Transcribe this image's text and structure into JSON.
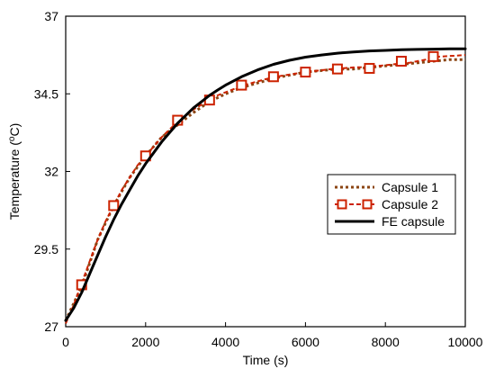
{
  "chart_data": {
    "type": "line",
    "title": "",
    "xlabel": "Time (s)",
    "ylabel_main": "Temperature (",
    "ylabel_sup": "o",
    "ylabel_tail": "C)",
    "xlim": [
      0,
      10000
    ],
    "ylim": [
      27,
      37
    ],
    "x_ticks": [
      0,
      2000,
      4000,
      6000,
      8000,
      10000
    ],
    "x_tick_labels": [
      "0",
      "2000",
      "4000",
      "6000",
      "8000",
      "10000"
    ],
    "y_ticks": [
      27,
      29.5,
      32,
      34.5,
      37
    ],
    "y_tick_labels": [
      "27",
      "29.5",
      "32",
      "34.5",
      "37"
    ],
    "grid": false,
    "legend_position": "right",
    "series": [
      {
        "name": "Capsule 1",
        "style": "dotted",
        "color": "#8B4513",
        "x": [
          0,
          400,
          800,
          1200,
          1600,
          2000,
          2400,
          2800,
          3200,
          3600,
          4000,
          4400,
          4800,
          5200,
          5600,
          6000,
          6400,
          6800,
          7200,
          7600,
          8000,
          8400,
          8800,
          9200,
          9600,
          10000
        ],
        "y": [
          27.2,
          28.3,
          29.8,
          30.9,
          31.8,
          32.5,
          33.1,
          33.5,
          33.9,
          34.25,
          34.5,
          34.7,
          34.85,
          35.0,
          35.1,
          35.2,
          35.25,
          35.3,
          35.3,
          35.35,
          35.4,
          35.45,
          35.5,
          35.55,
          35.6,
          35.6
        ]
      },
      {
        "name": "Capsule 2",
        "style": "dashed-square",
        "color": "#CC2200",
        "x": [
          0,
          200,
          400,
          600,
          800,
          1000,
          1200,
          1400,
          1600,
          1800,
          2000,
          2200,
          2400,
          2600,
          2800,
          3000,
          3200,
          3400,
          3600,
          3800,
          4000,
          4200,
          4400,
          4600,
          4800,
          5000,
          5200,
          5400,
          5600,
          5800,
          6000,
          6200,
          6400,
          6600,
          6800,
          7000,
          7200,
          7400,
          7600,
          7800,
          8000,
          8200,
          8400,
          8600,
          8800,
          9000,
          9200,
          9400,
          9600,
          9800,
          10000
        ],
        "y": [
          27.1,
          27.7,
          28.4,
          29.1,
          29.8,
          30.4,
          30.9,
          31.4,
          31.8,
          32.2,
          32.5,
          32.8,
          33.1,
          33.35,
          33.6,
          33.8,
          34.0,
          34.15,
          34.3,
          34.45,
          34.55,
          34.65,
          34.75,
          34.83,
          34.9,
          34.97,
          35.03,
          35.08,
          35.12,
          35.16,
          35.2,
          35.23,
          35.26,
          35.29,
          35.31,
          35.33,
          35.35,
          35.36,
          35.38,
          35.4,
          35.42,
          35.45,
          35.48,
          35.5,
          35.55,
          35.6,
          35.68,
          35.7,
          35.72,
          35.73,
          35.75
        ],
        "markers_x": [
          400,
          1200,
          2000,
          2800,
          3600,
          4400,
          5200,
          6000,
          6800,
          7600,
          8400,
          9200
        ],
        "markers_y": [
          28.35,
          30.9,
          32.5,
          33.65,
          34.3,
          34.78,
          35.05,
          35.2,
          35.3,
          35.32,
          35.55,
          35.7
        ]
      },
      {
        "name": "FE capsule",
        "style": "solid",
        "color": "#000000",
        "x": [
          0,
          200,
          400,
          600,
          800,
          1000,
          1200,
          1400,
          1600,
          1800,
          2000,
          2200,
          2400,
          2600,
          2800,
          3000,
          3200,
          3400,
          3600,
          3800,
          4000,
          4400,
          4800,
          5200,
          5600,
          6000,
          6400,
          6800,
          7200,
          7600,
          8000,
          8400,
          8800,
          9200,
          9600,
          10000
        ],
        "y": [
          27.2,
          27.6,
          28.1,
          28.7,
          29.3,
          29.9,
          30.45,
          30.95,
          31.4,
          31.85,
          32.25,
          32.6,
          32.95,
          33.25,
          33.55,
          33.8,
          34.05,
          34.25,
          34.45,
          34.62,
          34.78,
          35.05,
          35.27,
          35.45,
          35.58,
          35.68,
          35.75,
          35.81,
          35.85,
          35.88,
          35.9,
          35.92,
          35.93,
          35.94,
          35.95,
          35.95
        ]
      }
    ]
  }
}
